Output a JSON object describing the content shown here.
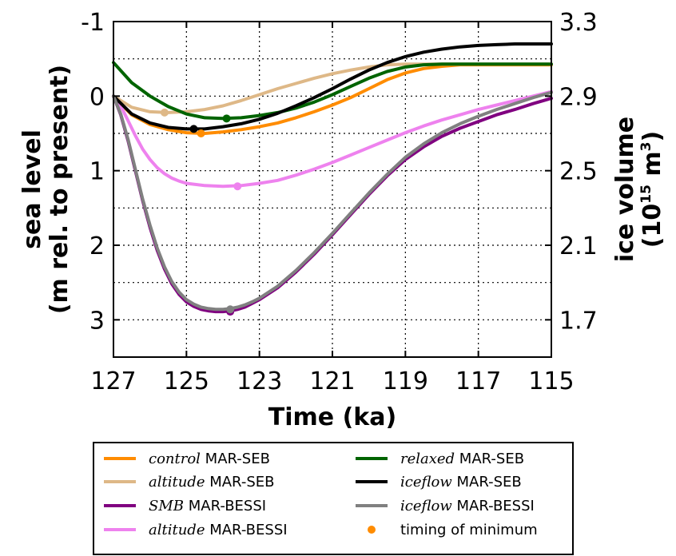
{
  "chart_data": {
    "type": "line",
    "xlabel": "Time (ka)",
    "ylabel_line1": "sea level",
    "ylabel_line2": "(m rel. to present)",
    "y2label_line1": "ice volume",
    "y2label_line2_pre": "(10",
    "y2label_line2_sup": "15",
    "y2label_line2_mid": " m",
    "y2label_line2_sup2": "3",
    "y2label_line2_post": ")",
    "xlim": [
      127,
      115
    ],
    "ylim": [
      -1,
      3.5
    ],
    "y_inverted": true,
    "xticks": [
      "127",
      "125",
      "123",
      "121",
      "119",
      "117",
      "115"
    ],
    "xtick_values": [
      127,
      125,
      123,
      121,
      119,
      117,
      115
    ],
    "yticks": [
      "-1",
      "0",
      "1",
      "2",
      "3"
    ],
    "ytick_values": [
      -1,
      0,
      1,
      2,
      3
    ],
    "y2ticks": [
      "3.3",
      "2.9",
      "2.5",
      "2.1",
      "1.7"
    ],
    "grid": true,
    "legend_position": "below",
    "series": [
      {
        "name_italic": "control",
        "name_rest": " MAR-SEB",
        "color": "#ff8c00",
        "x": [
          127,
          126.5,
          126,
          125.5,
          125,
          124.5,
          124,
          123.5,
          123,
          122.5,
          122,
          121.5,
          121,
          120.5,
          120,
          119.5,
          119,
          118.5,
          118,
          117.5,
          117,
          116,
          115
        ],
        "y": [
          0,
          0.25,
          0.38,
          0.45,
          0.49,
          0.5,
          0.48,
          0.45,
          0.41,
          0.36,
          0.29,
          0.21,
          0.12,
          0.02,
          -0.1,
          -0.22,
          -0.31,
          -0.37,
          -0.4,
          -0.42,
          -0.42,
          -0.42,
          -0.42
        ],
        "min_x": 124.6,
        "min_y": 0.5
      },
      {
        "name_italic": "altitude",
        "name_rest": " MAR-SEB",
        "color": "#deb887",
        "x": [
          127,
          126.5,
          126,
          125.5,
          125,
          124.5,
          124,
          123.5,
          123,
          122.5,
          122,
          121.5,
          121,
          120.5,
          120,
          119.5,
          119,
          118.5,
          118,
          117,
          116,
          115
        ],
        "y": [
          0,
          0.15,
          0.21,
          0.22,
          0.21,
          0.18,
          0.13,
          0.06,
          -0.02,
          -0.1,
          -0.17,
          -0.24,
          -0.3,
          -0.35,
          -0.39,
          -0.42,
          -0.43,
          -0.43,
          -0.43,
          -0.43,
          -0.43,
          -0.43
        ],
        "min_x": 125.6,
        "min_y": 0.22
      },
      {
        "name_italic": "SMB",
        "name_rest": " MAR-BESSI",
        "color": "#800080",
        "x": [
          127,
          126.8,
          126.6,
          126.4,
          126.2,
          126,
          125.8,
          125.6,
          125.4,
          125.2,
          125,
          124.8,
          124.6,
          124.4,
          124.2,
          124,
          123.8,
          123.6,
          123.4,
          123.2,
          123,
          122.5,
          122,
          121.5,
          121,
          120.5,
          120,
          119.5,
          119,
          118.5,
          118,
          117.5,
          117,
          116.5,
          116,
          115.5,
          115
        ],
        "y": [
          0,
          0.25,
          0.6,
          1.0,
          1.4,
          1.76,
          2.07,
          2.32,
          2.52,
          2.66,
          2.76,
          2.82,
          2.86,
          2.88,
          2.89,
          2.89,
          2.88,
          2.86,
          2.83,
          2.78,
          2.73,
          2.57,
          2.36,
          2.12,
          1.86,
          1.59,
          1.32,
          1.07,
          0.85,
          0.68,
          0.54,
          0.43,
          0.34,
          0.25,
          0.18,
          0.1,
          0.03
        ],
        "min_x": 123.8,
        "min_y": 2.89
      },
      {
        "name_italic": "altitude",
        "name_rest": " MAR-BESSI",
        "color": "#ee82ee",
        "x": [
          127,
          126.8,
          126.6,
          126.4,
          126.2,
          126,
          125.8,
          125.6,
          125.4,
          125.2,
          125,
          124.5,
          124,
          123.5,
          123,
          122.5,
          122,
          121.5,
          121,
          120.5,
          120,
          119.5,
          119,
          118.5,
          118,
          117.5,
          117,
          116.5,
          116,
          115.5,
          115
        ],
        "y": [
          0,
          0.13,
          0.33,
          0.53,
          0.71,
          0.85,
          0.96,
          1.04,
          1.1,
          1.14,
          1.17,
          1.2,
          1.21,
          1.2,
          1.17,
          1.13,
          1.06,
          0.98,
          0.89,
          0.79,
          0.69,
          0.59,
          0.49,
          0.4,
          0.32,
          0.25,
          0.18,
          0.12,
          0.06,
          0.0,
          -0.06
        ],
        "min_x": 123.6,
        "min_y": 1.21
      },
      {
        "name_italic": "relaxed",
        "name_rest": " MAR-SEB",
        "color": "#006400",
        "x": [
          127,
          126.5,
          126,
          125.5,
          125,
          124.5,
          124,
          123.5,
          123,
          122.5,
          122,
          121.5,
          121,
          120.5,
          120,
          119.5,
          119,
          118.5,
          118,
          117.5,
          117,
          116,
          115
        ],
        "y": [
          -0.45,
          -0.18,
          0.0,
          0.14,
          0.24,
          0.29,
          0.3,
          0.29,
          0.26,
          0.22,
          0.16,
          0.08,
          -0.02,
          -0.13,
          -0.24,
          -0.33,
          -0.39,
          -0.42,
          -0.43,
          -0.43,
          -0.43,
          -0.43,
          -0.43
        ],
        "min_x": 123.9,
        "min_y": 0.3
      },
      {
        "name_italic": "iceflow",
        "name_rest": " MAR-SEB",
        "color": "#000000",
        "x": [
          127,
          126.5,
          126,
          125.5,
          125,
          124.5,
          124,
          123.5,
          123,
          122.5,
          122,
          121.5,
          121,
          120.5,
          120,
          119.5,
          119,
          118.5,
          118,
          117.5,
          117,
          116.5,
          116,
          115.5,
          115
        ],
        "y": [
          0,
          0.24,
          0.36,
          0.42,
          0.44,
          0.44,
          0.41,
          0.37,
          0.31,
          0.23,
          0.13,
          0.02,
          -0.1,
          -0.23,
          -0.35,
          -0.45,
          -0.53,
          -0.59,
          -0.63,
          -0.66,
          -0.68,
          -0.69,
          -0.7,
          -0.7,
          -0.7
        ],
        "min_x": 124.8,
        "min_y": 0.44
      },
      {
        "name_italic": "iceflow",
        "name_rest": " MAR-BESSI",
        "color": "#808080",
        "x": [
          127,
          126.8,
          126.6,
          126.4,
          126.2,
          126,
          125.8,
          125.6,
          125.4,
          125.2,
          125,
          124.8,
          124.6,
          124.4,
          124.2,
          124,
          123.8,
          123.6,
          123.4,
          123.2,
          123,
          122.5,
          122,
          121.5,
          121,
          120.5,
          120,
          119.5,
          119,
          118.5,
          118,
          117.5,
          117,
          116.5,
          116,
          115.5,
          115
        ],
        "y": [
          0,
          0.24,
          0.58,
          0.98,
          1.38,
          1.73,
          2.04,
          2.29,
          2.49,
          2.63,
          2.73,
          2.79,
          2.83,
          2.85,
          2.86,
          2.86,
          2.85,
          2.83,
          2.8,
          2.76,
          2.71,
          2.55,
          2.34,
          2.1,
          1.84,
          1.57,
          1.3,
          1.05,
          0.82,
          0.64,
          0.49,
          0.37,
          0.27,
          0.18,
          0.1,
          0.02,
          -0.05
        ],
        "min_x": 123.8,
        "min_y": 2.86
      }
    ],
    "legend": [
      {
        "italic": "control",
        "rest": " MAR-SEB",
        "color": "#ff8c00",
        "kind": "line"
      },
      {
        "italic": "altitude",
        "rest": " MAR-SEB",
        "color": "#deb887",
        "kind": "line"
      },
      {
        "italic": "SMB",
        "rest": " MAR-BESSI",
        "color": "#800080",
        "kind": "line"
      },
      {
        "italic": "altitude",
        "rest": " MAR-BESSI",
        "color": "#ee82ee",
        "kind": "line"
      },
      {
        "italic": "relaxed",
        "rest": " MAR-SEB",
        "color": "#006400",
        "kind": "line"
      },
      {
        "italic": "iceflow",
        "rest": " MAR-SEB",
        "color": "#000000",
        "kind": "line"
      },
      {
        "italic": "iceflow",
        "rest": " MAR-BESSI",
        "color": "#808080",
        "kind": "line"
      },
      {
        "italic": "",
        "rest": "timing of minimum",
        "color": "#ff8c00",
        "kind": "marker"
      }
    ]
  }
}
